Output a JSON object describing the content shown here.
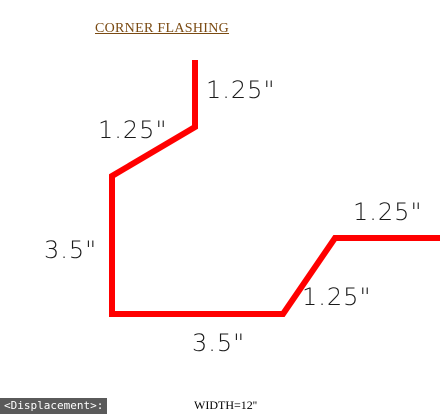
{
  "title": "CORNER FLASHING",
  "dimensions": {
    "top_vertical": "1.25\"",
    "upper_diagonal": "1.25\"",
    "left_vertical": "3.5\"",
    "bottom_horizontal": "3.5\"",
    "lower_diagonal": "1.25\"",
    "right_horizontal": "1.25\""
  },
  "width_note": "WIDTH=12''",
  "status_tag": "<Displacement>:",
  "colors": {
    "profile_line": "#ff0000",
    "title": "#7a4a12",
    "dimension_text": "#1a1a1a",
    "status_bg": "#5a5a5a"
  }
}
